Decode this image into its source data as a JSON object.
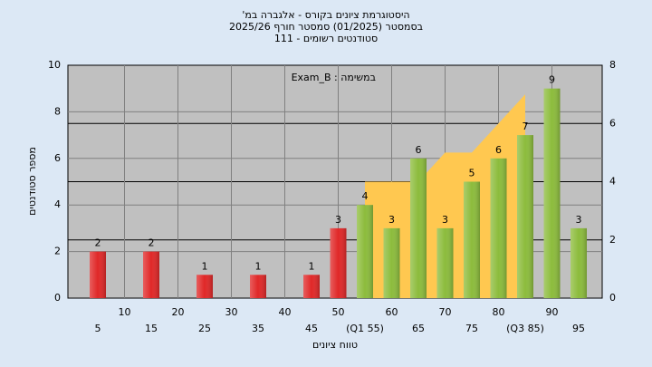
{
  "chart_data": {
    "type": "bar",
    "title": [
      "היסטוגרמת ציונים בקורס - אלגברה במ'",
      "בסמסטר (01/2025) סמסטר חורף 2025/26",
      "סטודנטים רשומים - 111"
    ],
    "annotation": "במשימה : Exam_B",
    "ylabel": "מספר סטודנטים",
    "xlabel": "טווח ציונים",
    "x": [
      5,
      15,
      25,
      35,
      45,
      50,
      55,
      60,
      65,
      70,
      75,
      80,
      85,
      90,
      95
    ],
    "values": [
      2,
      2,
      1,
      1,
      1,
      3,
      4,
      3,
      6,
      3,
      5,
      6,
      7,
      9,
      3
    ],
    "colors": [
      "#e02828",
      "#e02828",
      "#e02828",
      "#e02828",
      "#e02828",
      "#e02828",
      "#8cbc3c",
      "#8cbc3c",
      "#8cbc3c",
      "#8cbc3c",
      "#8cbc3c",
      "#8cbc3c",
      "#8cbc3c",
      "#8cbc3c",
      "#8cbc3c"
    ],
    "xlim": [
      0,
      100
    ],
    "xticks": [
      10,
      20,
      30,
      40,
      50,
      60,
      70,
      80,
      90
    ],
    "xticks_lower": [
      5,
      15,
      25,
      35,
      45,
      {
        "value": 55,
        "label": "(Q1 55)"
      },
      65,
      75,
      {
        "value": 85,
        "label": "(Q3 85)"
      },
      95
    ],
    "ylim": [
      0,
      10
    ],
    "yticks": [
      0,
      2,
      4,
      6,
      8,
      10
    ],
    "y2lim": [
      0,
      8
    ],
    "y2ticks": [
      0,
      2,
      4,
      6,
      8
    ],
    "area": {
      "axis": "y2",
      "color": "#ffc850",
      "x": [
        55,
        65,
        70,
        75,
        85
      ],
      "values": [
        4,
        4,
        5,
        5,
        7
      ]
    },
    "grid": true
  }
}
